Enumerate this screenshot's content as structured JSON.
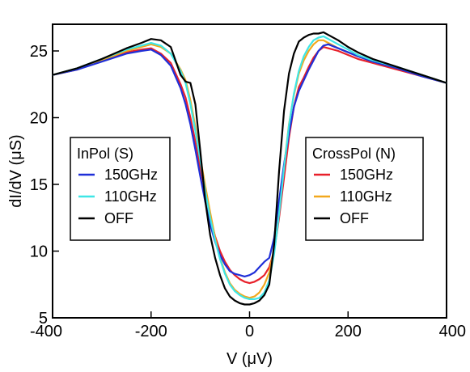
{
  "chart_data": {
    "type": "line",
    "xlabel": "V (μV)",
    "ylabel": "dI/dV (μS)",
    "xlim": [
      -400,
      400
    ],
    "ylim": [
      5,
      27
    ],
    "xticks": [
      -400,
      -200,
      0,
      200,
      400
    ],
    "yticks": [
      5,
      10,
      15,
      20,
      25
    ],
    "grid": false,
    "legends": [
      {
        "title": "InPol (S)",
        "placement": "left",
        "entries": [
          {
            "label": "150GHz",
            "color": "#1f2fd8"
          },
          {
            "label": "110GHz",
            "color": "#3ee6e6"
          },
          {
            "label": "OFF",
            "color": "#000000"
          }
        ]
      },
      {
        "title": "CrossPol (N)",
        "placement": "right",
        "entries": [
          {
            "label": "150GHz",
            "color": "#e8202a"
          },
          {
            "label": "110GHz",
            "color": "#f2a81d"
          },
          {
            "label": "OFF",
            "color": "#000000"
          }
        ]
      }
    ],
    "x": [
      -400,
      -350,
      -300,
      -250,
      -220,
      -200,
      -180,
      -160,
      -140,
      -130,
      -120,
      -110,
      -100,
      -90,
      -80,
      -70,
      -60,
      -50,
      -40,
      -30,
      -20,
      -10,
      0,
      10,
      20,
      30,
      40,
      50,
      60,
      70,
      80,
      90,
      100,
      110,
      120,
      130,
      140,
      150,
      160,
      180,
      200,
      220,
      250,
      300,
      350,
      400
    ],
    "series": [
      {
        "color": "#e8202a",
        "values": [
          23.2,
          23.6,
          24.3,
          24.9,
          25.1,
          25.2,
          24.8,
          24.1,
          22.5,
          21.5,
          20.0,
          18.2,
          16.2,
          14.5,
          12.6,
          11.1,
          10.0,
          9.2,
          8.6,
          8.2,
          7.9,
          7.7,
          7.6,
          7.7,
          7.9,
          8.2,
          8.8,
          10.0,
          12.5,
          15.5,
          18.5,
          20.8,
          22.3,
          23.0,
          23.8,
          24.5,
          25.0,
          25.3,
          25.2,
          25.0,
          24.7,
          24.4,
          24.1,
          23.6,
          23.1,
          22.6
        ]
      },
      {
        "color": "#f2a81d",
        "values": [
          23.2,
          23.7,
          24.3,
          25.0,
          25.3,
          25.5,
          25.3,
          24.8,
          23.6,
          22.8,
          21.3,
          19.3,
          17.0,
          14.9,
          12.9,
          11.0,
          9.5,
          8.4,
          7.6,
          7.1,
          6.8,
          6.6,
          6.5,
          6.6,
          6.9,
          7.5,
          8.4,
          10.2,
          13.0,
          16.3,
          19.5,
          21.7,
          23.3,
          24.3,
          25.0,
          25.5,
          25.8,
          25.8,
          25.6,
          25.2,
          24.9,
          24.6,
          24.2,
          23.7,
          23.2,
          22.6
        ]
      },
      {
        "color": "#1f2fd8",
        "values": [
          23.2,
          23.6,
          24.2,
          24.8,
          25.0,
          25.1,
          24.7,
          23.9,
          22.2,
          21.0,
          19.5,
          17.6,
          15.6,
          13.7,
          12.0,
          10.7,
          9.7,
          9.0,
          8.5,
          8.3,
          8.2,
          8.1,
          8.2,
          8.4,
          8.8,
          9.2,
          9.5,
          11.0,
          13.8,
          16.5,
          18.8,
          20.8,
          22.0,
          22.8,
          23.6,
          24.3,
          25.0,
          25.4,
          25.5,
          25.2,
          24.9,
          24.6,
          24.2,
          23.7,
          23.1,
          22.6
        ]
      },
      {
        "color": "#3ee6e6",
        "values": [
          23.2,
          23.7,
          24.4,
          25.1,
          25.4,
          25.6,
          25.4,
          24.8,
          23.5,
          22.6,
          21.0,
          19.0,
          16.8,
          14.5,
          12.5,
          10.8,
          9.4,
          8.3,
          7.5,
          7.0,
          6.7,
          6.5,
          6.4,
          6.4,
          6.5,
          6.9,
          7.8,
          9.8,
          12.8,
          16.2,
          19.4,
          21.8,
          23.5,
          24.6,
          25.3,
          25.8,
          26.0,
          26.1,
          25.9,
          25.5,
          25.1,
          24.7,
          24.3,
          23.8,
          23.2,
          22.6
        ]
      },
      {
        "color": "#000000",
        "values": [
          23.2,
          23.7,
          24.4,
          25.2,
          25.6,
          25.9,
          25.8,
          25.3,
          23.2,
          22.7,
          22.6,
          21.0,
          17.5,
          13.8,
          11.2,
          9.5,
          8.2,
          7.2,
          6.6,
          6.3,
          6.1,
          6.0,
          6.0,
          6.1,
          6.3,
          6.7,
          7.5,
          10.5,
          16.0,
          20.5,
          23.3,
          24.8,
          25.7,
          26.0,
          26.2,
          26.3,
          26.3,
          26.4,
          26.2,
          25.8,
          25.3,
          24.9,
          24.4,
          23.8,
          23.2,
          22.6
        ]
      }
    ]
  }
}
